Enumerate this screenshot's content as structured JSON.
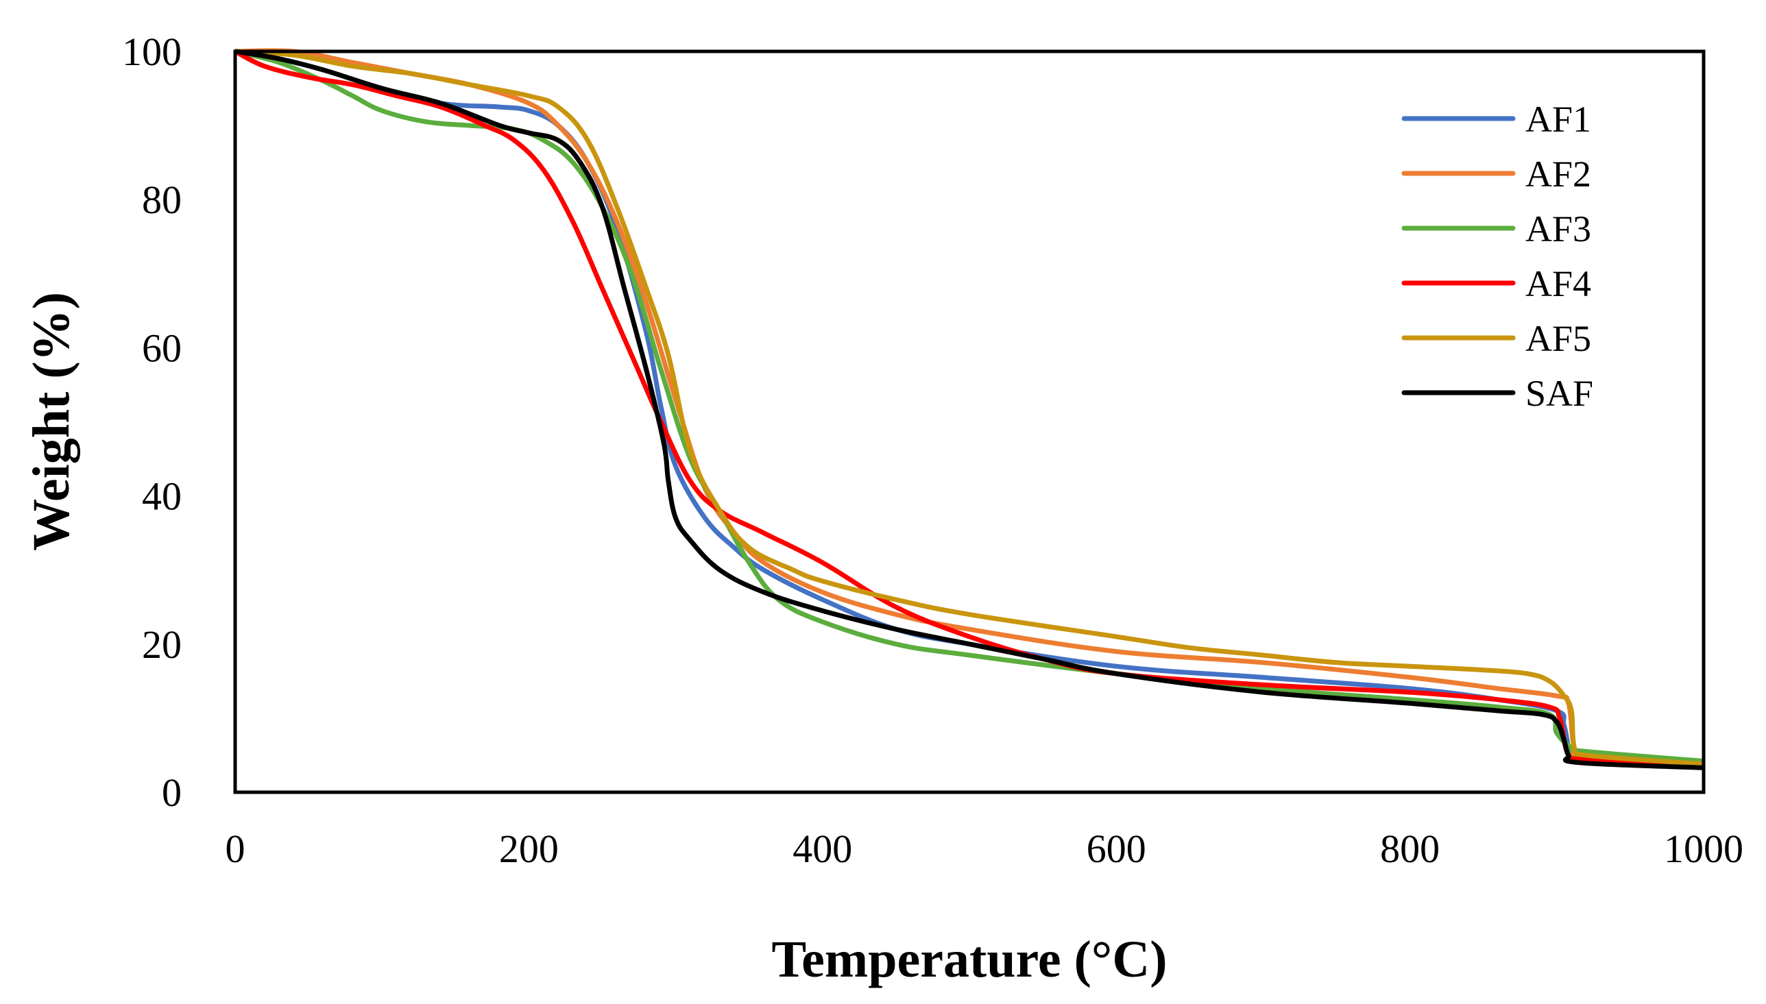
{
  "chart_data": {
    "type": "line",
    "title": "",
    "xlabel": "Temperature (°C)",
    "ylabel": "Weight (%)",
    "xlim": [
      0,
      1000
    ],
    "ylim": [
      0,
      100
    ],
    "x_ticks": [
      0,
      200,
      400,
      600,
      800,
      1000
    ],
    "y_ticks": [
      0,
      20,
      40,
      60,
      80,
      100
    ],
    "x_tick_labels": [
      "0",
      "200",
      "400",
      "600",
      "800",
      "1000"
    ],
    "y_tick_labels": [
      "0",
      "20",
      "40",
      "60",
      "80",
      "100"
    ],
    "grid": false,
    "legend_position": "top-right",
    "series": [
      {
        "name": "AF1",
        "color": "#4472C4",
        "points": [
          [
            0,
            100
          ],
          [
            30,
            99
          ],
          [
            60,
            97.5
          ],
          [
            100,
            95
          ],
          [
            140,
            93
          ],
          [
            180,
            92.5
          ],
          [
            200,
            92
          ],
          [
            220,
            90
          ],
          [
            240,
            85
          ],
          [
            260,
            76
          ],
          [
            280,
            62
          ],
          [
            290,
            52
          ],
          [
            300,
            44
          ],
          [
            320,
            37
          ],
          [
            340,
            33
          ],
          [
            360,
            30
          ],
          [
            400,
            26
          ],
          [
            450,
            22
          ],
          [
            500,
            20
          ],
          [
            600,
            17
          ],
          [
            700,
            15.5
          ],
          [
            800,
            14
          ],
          [
            860,
            12.5
          ],
          [
            900,
            11
          ],
          [
            905,
            9
          ],
          [
            910,
            5
          ],
          [
            920,
            4.5
          ],
          [
            1000,
            3.8
          ]
        ]
      },
      {
        "name": "AF2",
        "color": "#ED7D31",
        "points": [
          [
            0,
            100
          ],
          [
            40,
            100
          ],
          [
            80,
            98.5
          ],
          [
            120,
            97
          ],
          [
            160,
            95.5
          ],
          [
            200,
            93
          ],
          [
            220,
            90
          ],
          [
            240,
            85
          ],
          [
            260,
            77
          ],
          [
            280,
            66
          ],
          [
            300,
            53
          ],
          [
            320,
            41
          ],
          [
            340,
            35
          ],
          [
            360,
            31
          ],
          [
            400,
            27
          ],
          [
            450,
            24
          ],
          [
            500,
            22
          ],
          [
            600,
            19
          ],
          [
            700,
            17.5
          ],
          [
            800,
            15.5
          ],
          [
            860,
            14
          ],
          [
            900,
            13
          ],
          [
            908,
            12
          ],
          [
            912,
            6
          ],
          [
            920,
            5
          ],
          [
            1000,
            4
          ]
        ]
      },
      {
        "name": "AF3",
        "color": "#5BAD3E",
        "points": [
          [
            0,
            100
          ],
          [
            30,
            98.5
          ],
          [
            60,
            96
          ],
          [
            80,
            94
          ],
          [
            100,
            92
          ],
          [
            130,
            90.5
          ],
          [
            160,
            90
          ],
          [
            190,
            89.5
          ],
          [
            210,
            88
          ],
          [
            230,
            85
          ],
          [
            250,
            79
          ],
          [
            270,
            70
          ],
          [
            290,
            57
          ],
          [
            310,
            45
          ],
          [
            330,
            38
          ],
          [
            350,
            31
          ],
          [
            370,
            26
          ],
          [
            400,
            23
          ],
          [
            450,
            20
          ],
          [
            500,
            18.5
          ],
          [
            600,
            16
          ],
          [
            700,
            14
          ],
          [
            800,
            12.5
          ],
          [
            860,
            11.5
          ],
          [
            895,
            10.5
          ],
          [
            900,
            8
          ],
          [
            910,
            6
          ],
          [
            920,
            5.5
          ],
          [
            1000,
            4.2
          ]
        ]
      },
      {
        "name": "AF4",
        "color": "#FF0000",
        "points": [
          [
            0,
            100
          ],
          [
            20,
            98
          ],
          [
            50,
            96.5
          ],
          [
            80,
            95.5
          ],
          [
            110,
            94
          ],
          [
            140,
            92.5
          ],
          [
            170,
            90
          ],
          [
            190,
            88
          ],
          [
            210,
            84
          ],
          [
            230,
            77
          ],
          [
            250,
            68
          ],
          [
            270,
            59
          ],
          [
            290,
            50
          ],
          [
            310,
            42
          ],
          [
            330,
            38
          ],
          [
            360,
            35
          ],
          [
            400,
            31
          ],
          [
            450,
            25
          ],
          [
            500,
            21
          ],
          [
            550,
            18
          ],
          [
            600,
            16
          ],
          [
            700,
            14.5
          ],
          [
            800,
            13.5
          ],
          [
            860,
            12.5
          ],
          [
            895,
            11.5
          ],
          [
            902,
            10
          ],
          [
            908,
            5
          ],
          [
            920,
            4.5
          ],
          [
            1000,
            3.8
          ]
        ]
      },
      {
        "name": "AF5",
        "color": "#C9950E",
        "points": [
          [
            0,
            100
          ],
          [
            40,
            99.5
          ],
          [
            80,
            98
          ],
          [
            120,
            97
          ],
          [
            160,
            95.5
          ],
          [
            200,
            94
          ],
          [
            220,
            92.5
          ],
          [
            240,
            88
          ],
          [
            260,
            79
          ],
          [
            280,
            68
          ],
          [
            295,
            59
          ],
          [
            310,
            46
          ],
          [
            330,
            38
          ],
          [
            350,
            33
          ],
          [
            380,
            30
          ],
          [
            400,
            28.5
          ],
          [
            450,
            26
          ],
          [
            500,
            24
          ],
          [
            600,
            21
          ],
          [
            650,
            19.5
          ],
          [
            700,
            18.5
          ],
          [
            750,
            17.5
          ],
          [
            800,
            17
          ],
          [
            850,
            16.5
          ],
          [
            880,
            16
          ],
          [
            895,
            15
          ],
          [
            905,
            13
          ],
          [
            910,
            11
          ],
          [
            912,
            6
          ],
          [
            920,
            5
          ],
          [
            1000,
            3.8
          ]
        ]
      },
      {
        "name": "SAF",
        "color": "#000000",
        "points": [
          [
            0,
            100
          ],
          [
            30,
            99
          ],
          [
            60,
            97.5
          ],
          [
            100,
            95
          ],
          [
            140,
            93
          ],
          [
            180,
            90
          ],
          [
            200,
            89
          ],
          [
            220,
            88
          ],
          [
            235,
            85
          ],
          [
            250,
            79
          ],
          [
            265,
            68
          ],
          [
            280,
            57
          ],
          [
            292,
            47
          ],
          [
            295,
            42
          ],
          [
            300,
            37
          ],
          [
            310,
            34
          ],
          [
            330,
            30
          ],
          [
            360,
            27
          ],
          [
            400,
            24.5
          ],
          [
            450,
            22
          ],
          [
            500,
            20
          ],
          [
            550,
            18
          ],
          [
            600,
            16
          ],
          [
            700,
            13.5
          ],
          [
            800,
            12
          ],
          [
            860,
            11
          ],
          [
            890,
            10.5
          ],
          [
            900,
            9.5
          ],
          [
            905,
            7
          ],
          [
            908,
            5
          ],
          [
            915,
            4
          ],
          [
            1000,
            3.3
          ]
        ]
      }
    ]
  }
}
